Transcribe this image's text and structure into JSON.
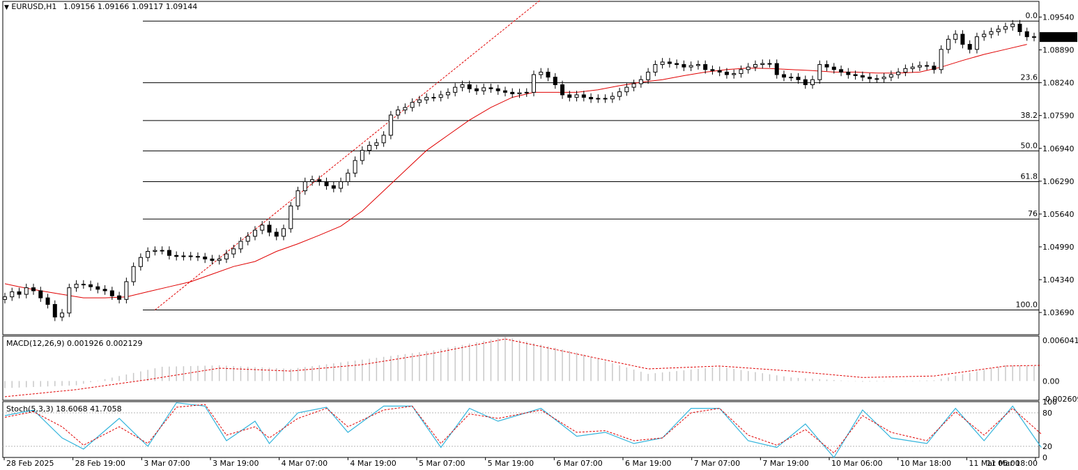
{
  "chart_data": {
    "type": "candlestick",
    "main": {
      "symbol_label": "EURUSD,H1",
      "ohlc_label": "1.09156 1.09166 1.09117 1.09144",
      "last_price_label": "1.09144",
      "last_price": 1.09144,
      "y_ticks": [
        "1.09540",
        "1.08890",
        "1.08240",
        "1.07590",
        "1.06940",
        "1.06290",
        "1.05640",
        "1.04990",
        "1.04340",
        "1.03690"
      ],
      "ylim": [
        1.0325,
        1.0985
      ],
      "fib_levels": [
        {
          "label": "0.0",
          "price": 1.0946
        },
        {
          "label": "23.6",
          "price": 1.0824
        },
        {
          "label": "38.2",
          "price": 1.0749
        },
        {
          "label": "50.0",
          "price": 1.0689
        },
        {
          "label": "61.8",
          "price": 1.0628
        },
        {
          "label": "76",
          "price": 1.0554
        },
        {
          "label": "100.0",
          "price": 1.0374
        }
      ],
      "x_ticks": [
        "28 Feb 2025",
        "28 Feb 19:00",
        "3 Mar 07:00",
        "3 Mar 19:00",
        "4 Mar 07:00",
        "4 Mar 19:00",
        "5 Mar 07:00",
        "5 Mar 19:00",
        "6 Mar 07:00",
        "6 Mar 19:00",
        "7 Mar 07:00",
        "7 Mar 19:00",
        "10 Mar 06:00",
        "10 Mar 18:00",
        "11 Mar 06:00",
        "11 Mar 18:00"
      ],
      "close_path": [
        1.04,
        1.041,
        1.0405,
        1.0418,
        1.0412,
        1.0398,
        1.0385,
        1.036,
        1.0368,
        1.0418,
        1.0425,
        1.0424,
        1.042,
        1.0415,
        1.0412,
        1.0402,
        1.0395,
        1.043,
        1.046,
        1.0478,
        1.049,
        1.0492,
        1.0492,
        1.0482,
        1.048,
        1.0481,
        1.048,
        1.0479,
        1.0475,
        1.0472,
        1.0475,
        1.0485,
        1.0495,
        1.051,
        1.052,
        1.0532,
        1.0542,
        1.0528,
        1.052,
        1.0535,
        1.058,
        1.061,
        1.0628,
        1.0632,
        1.0628,
        1.062,
        1.0615,
        1.0628,
        1.0645,
        1.067,
        1.069,
        1.07,
        1.0705,
        1.072,
        1.076,
        1.077,
        1.0775,
        1.0785,
        1.079,
        1.0795,
        1.0795,
        1.08,
        1.0805,
        1.0815,
        1.082,
        1.0812,
        1.0808,
        1.0814,
        1.0812,
        1.0808,
        1.0805,
        1.0802,
        1.0804,
        1.0805,
        1.084,
        1.0845,
        1.0835,
        1.082,
        1.08,
        1.0795,
        1.08,
        1.0795,
        1.0792,
        1.0793,
        1.0792,
        1.0797,
        1.0806,
        1.0815,
        1.0822,
        1.083,
        1.0845,
        1.086,
        1.0865,
        1.0862,
        1.086,
        1.0855,
        1.0858,
        1.086,
        1.085,
        1.0848,
        1.0845,
        1.084,
        1.0842,
        1.085,
        1.0855,
        1.086,
        1.0862,
        1.0862,
        1.084,
        1.0835,
        1.0835,
        1.083,
        1.082,
        1.083,
        1.086,
        1.0855,
        1.085,
        1.0845,
        1.084,
        1.0838,
        1.0835,
        1.0832,
        1.0832,
        1.0835,
        1.084,
        1.0845,
        1.0852,
        1.0855,
        1.0858,
        1.0857,
        1.085,
        1.089,
        1.091,
        1.092,
        1.09,
        1.089,
        1.0915,
        1.092,
        1.0925,
        1.093,
        1.0935,
        1.094,
        1.0925,
        1.0915,
        1.0914
      ],
      "ma_path": [
        [
          0,
          1.0426
        ],
        [
          2,
          1.042
        ],
        [
          5,
          1.0412
        ],
        [
          8,
          1.0405
        ],
        [
          11,
          1.0398
        ],
        [
          14,
          1.0398
        ],
        [
          17,
          1.04
        ],
        [
          20,
          1.041
        ],
        [
          23,
          1.042
        ],
        [
          26,
          1.043
        ],
        [
          29,
          1.0445
        ],
        [
          32,
          1.046
        ],
        [
          35,
          1.047
        ],
        [
          38,
          1.049
        ],
        [
          41,
          1.0505
        ],
        [
          44,
          1.0522
        ],
        [
          47,
          1.054
        ],
        [
          50,
          1.057
        ],
        [
          53,
          1.061
        ],
        [
          56,
          1.065
        ],
        [
          59,
          1.069
        ],
        [
          62,
          1.072
        ],
        [
          65,
          1.075
        ],
        [
          68,
          1.0775
        ],
        [
          71,
          1.0795
        ],
        [
          74,
          1.0805
        ],
        [
          77,
          1.0805
        ],
        [
          80,
          1.0805
        ],
        [
          83,
          1.081
        ],
        [
          86,
          1.0818
        ],
        [
          89,
          1.0825
        ],
        [
          92,
          1.083
        ],
        [
          95,
          1.0838
        ],
        [
          98,
          1.0845
        ],
        [
          101,
          1.085
        ],
        [
          104,
          1.0853
        ],
        [
          107,
          1.0852
        ],
        [
          110,
          1.085
        ],
        [
          113,
          1.0848
        ],
        [
          116,
          1.0845
        ],
        [
          119,
          1.0845
        ],
        [
          122,
          1.0843
        ],
        [
          125,
          1.0843
        ],
        [
          128,
          1.0845
        ],
        [
          131,
          1.0855
        ],
        [
          134,
          1.0868
        ],
        [
          137,
          1.088
        ],
        [
          140,
          1.089
        ],
        [
          143,
          1.09
        ]
      ],
      "trendline": {
        "from": [
          21,
          1.0374
        ],
        "to": [
          76,
          1.1
        ]
      }
    },
    "macd": {
      "label": "MACD(12,26,9) 0.001926 0.002129",
      "y_ticks": [
        "0.006041",
        "0.00",
        "-0.002609"
      ],
      "ylim": [
        -0.0027,
        0.0063
      ],
      "signal_path": [
        [
          0,
          -0.0022
        ],
        [
          10,
          -0.0012
        ],
        [
          20,
          0.0002
        ],
        [
          30,
          0.0018
        ],
        [
          40,
          0.0014
        ],
        [
          50,
          0.0023
        ],
        [
          60,
          0.0039
        ],
        [
          70,
          0.0059
        ],
        [
          80,
          0.0038
        ],
        [
          90,
          0.0017
        ],
        [
          100,
          0.0021
        ],
        [
          110,
          0.0014
        ],
        [
          120,
          0.0005
        ],
        [
          130,
          0.0007
        ],
        [
          140,
          0.0021
        ],
        [
          145,
          0.0022
        ]
      ],
      "histogram_path": [
        [
          0,
          -0.001
        ],
        [
          10,
          -0.0006
        ],
        [
          22,
          0.002
        ],
        [
          30,
          0.0022
        ],
        [
          40,
          0.0017
        ],
        [
          50,
          0.003
        ],
        [
          60,
          0.0043
        ],
        [
          70,
          0.0062
        ],
        [
          80,
          0.004
        ],
        [
          90,
          0.001
        ],
        [
          100,
          0.002
        ],
        [
          110,
          0.0005
        ],
        [
          120,
          -0.0001
        ],
        [
          130,
          0.0001
        ],
        [
          140,
          0.0022
        ],
        [
          145,
          0.0021
        ]
      ]
    },
    "stoch": {
      "label": "Stoch(5,3,3) 18.6068 41.7058",
      "y_ticks": [
        "100",
        "80",
        "20",
        "0"
      ],
      "ylim": [
        0,
        100
      ],
      "main_path": [
        [
          0,
          75
        ],
        [
          4,
          85
        ],
        [
          8,
          35
        ],
        [
          11,
          15
        ],
        [
          16,
          70
        ],
        [
          20,
          20
        ],
        [
          24,
          98
        ],
        [
          28,
          92
        ],
        [
          31,
          30
        ],
        [
          35,
          65
        ],
        [
          37,
          25
        ],
        [
          41,
          80
        ],
        [
          45,
          90
        ],
        [
          48,
          45
        ],
        [
          53,
          92
        ],
        [
          57,
          92
        ],
        [
          61,
          18
        ],
        [
          65,
          88
        ],
        [
          69,
          65
        ],
        [
          75,
          88
        ],
        [
          80,
          38
        ],
        [
          84,
          45
        ],
        [
          88,
          25
        ],
        [
          92,
          35
        ],
        [
          96,
          88
        ],
        [
          100,
          88
        ],
        [
          104,
          30
        ],
        [
          108,
          18
        ],
        [
          112,
          60
        ],
        [
          116,
          0
        ],
        [
          120,
          85
        ],
        [
          124,
          35
        ],
        [
          129,
          25
        ],
        [
          133,
          88
        ],
        [
          137,
          30
        ],
        [
          141,
          92
        ],
        [
          145,
          18
        ]
      ],
      "signal_path": [
        [
          0,
          72
        ],
        [
          4,
          82
        ],
        [
          8,
          55
        ],
        [
          11,
          22
        ],
        [
          16,
          55
        ],
        [
          20,
          25
        ],
        [
          24,
          90
        ],
        [
          28,
          95
        ],
        [
          31,
          40
        ],
        [
          35,
          55
        ],
        [
          37,
          35
        ],
        [
          41,
          70
        ],
        [
          45,
          88
        ],
        [
          48,
          55
        ],
        [
          53,
          85
        ],
        [
          57,
          92
        ],
        [
          61,
          25
        ],
        [
          65,
          78
        ],
        [
          69,
          70
        ],
        [
          75,
          85
        ],
        [
          80,
          45
        ],
        [
          84,
          48
        ],
        [
          88,
          30
        ],
        [
          92,
          35
        ],
        [
          96,
          80
        ],
        [
          100,
          88
        ],
        [
          104,
          40
        ],
        [
          108,
          22
        ],
        [
          112,
          50
        ],
        [
          116,
          8
        ],
        [
          120,
          75
        ],
        [
          124,
          45
        ],
        [
          129,
          30
        ],
        [
          133,
          82
        ],
        [
          137,
          40
        ],
        [
          141,
          88
        ],
        [
          145,
          42
        ]
      ]
    },
    "colors": {
      "bull": "#000000",
      "ma": "#e00000",
      "fib": "#000000",
      "trend": "#e00000",
      "macd_hist": "#c8c8c8",
      "macd_signal": "#e00000",
      "stoch_main": "#32b4dc",
      "stoch_signal": "#e00000"
    }
  }
}
